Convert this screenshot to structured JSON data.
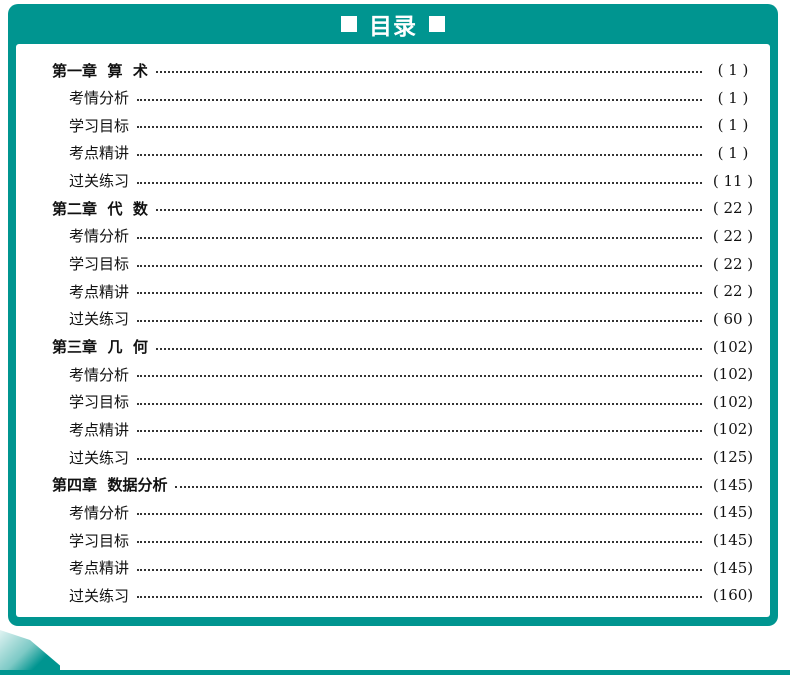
{
  "header": {
    "title": "目录"
  },
  "colors": {
    "accent": "#009590"
  },
  "toc": [
    {
      "type": "chapter",
      "label": "第一章  算  术",
      "page": "( 1 )"
    },
    {
      "type": "section",
      "label": "考情分析",
      "page": "( 1 )"
    },
    {
      "type": "section",
      "label": "学习目标",
      "page": "( 1 )"
    },
    {
      "type": "section",
      "label": "考点精讲",
      "page": "( 1 )"
    },
    {
      "type": "section",
      "label": "过关练习",
      "page": "( 11 )"
    },
    {
      "type": "chapter",
      "label": "第二章  代  数",
      "page": "( 22 )"
    },
    {
      "type": "section",
      "label": "考情分析",
      "page": "( 22 )"
    },
    {
      "type": "section",
      "label": "学习目标",
      "page": "( 22 )"
    },
    {
      "type": "section",
      "label": "考点精讲",
      "page": "( 22 )"
    },
    {
      "type": "section",
      "label": "过关练习",
      "page": "( 60 )"
    },
    {
      "type": "chapter",
      "label": "第三章  几  何",
      "page": "(102)"
    },
    {
      "type": "section",
      "label": "考情分析",
      "page": "(102)"
    },
    {
      "type": "section",
      "label": "学习目标",
      "page": "(102)"
    },
    {
      "type": "section",
      "label": "考点精讲",
      "page": "(102)"
    },
    {
      "type": "section",
      "label": "过关练习",
      "page": "(125)"
    },
    {
      "type": "chapter",
      "label": "第四章  数据分析",
      "page": "(145)"
    },
    {
      "type": "section",
      "label": "考情分析",
      "page": "(145)"
    },
    {
      "type": "section",
      "label": "学习目标",
      "page": "(145)"
    },
    {
      "type": "section",
      "label": "考点精讲",
      "page": "(145)"
    },
    {
      "type": "section",
      "label": "过关练习",
      "page": "(160)"
    }
  ]
}
